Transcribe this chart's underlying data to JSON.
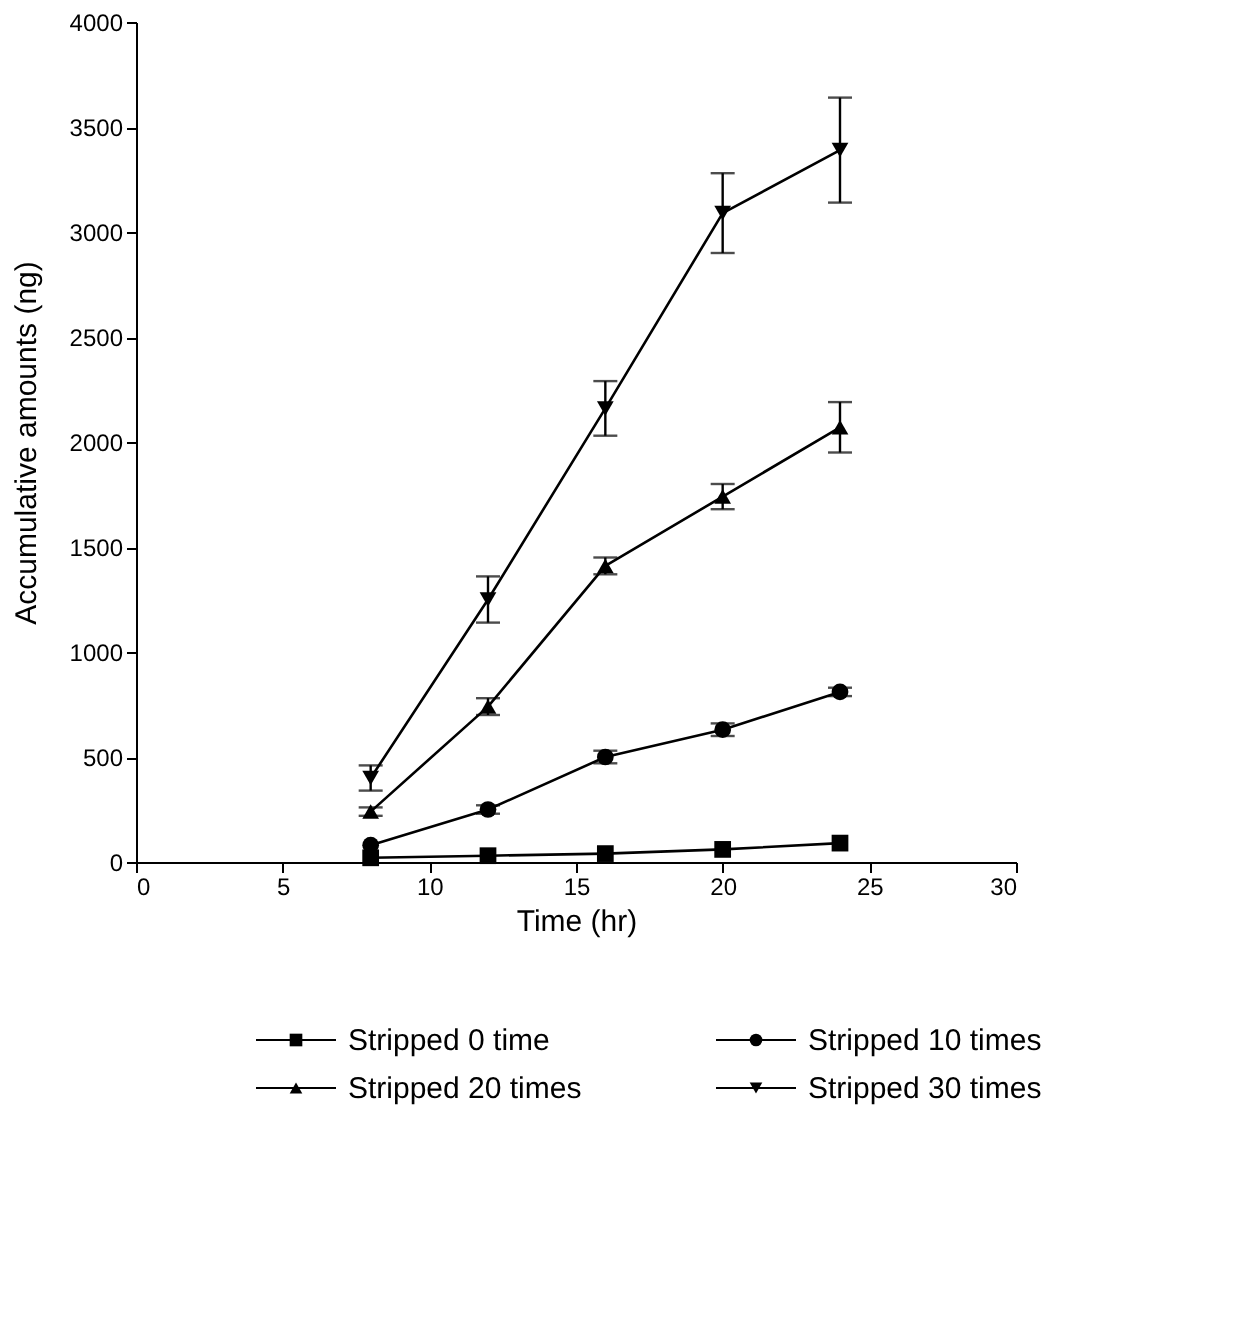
{
  "chart_data": {
    "type": "line",
    "xlabel": "Time (hr)",
    "ylabel": "Accumulative amounts (ng)",
    "x": [
      8,
      12,
      16,
      20,
      24
    ],
    "series": [
      {
        "name": "Stripped 0 time",
        "color": "#000000",
        "marker": "square",
        "values": [
          20,
          30,
          40,
          60,
          90
        ]
      },
      {
        "name": "Stripped 10 times",
        "color": "#000000",
        "marker": "circle",
        "values": [
          80,
          250,
          500,
          630,
          810
        ],
        "errors": [
          null,
          20,
          30,
          30,
          20
        ]
      },
      {
        "name": "Stripped 20 times",
        "color": "#000000",
        "marker": "triangle",
        "values": [
          240,
          740,
          1410,
          1740,
          2070
        ],
        "errors": [
          20,
          40,
          40,
          60,
          120
        ]
      },
      {
        "name": "Stripped 30 times",
        "color": "#000000",
        "marker": "triangle-down",
        "values": [
          400,
          1250,
          2160,
          3090,
          3390
        ],
        "errors": [
          60,
          110,
          130,
          190,
          250
        ]
      }
    ],
    "xlim": [
      0,
      30
    ],
    "xticks": [
      0,
      5,
      10,
      15,
      20,
      25,
      30
    ],
    "ylim": [
      0,
      4000
    ],
    "yticks": [
      0,
      500,
      1000,
      1500,
      2000,
      2500,
      3000,
      3500,
      4000
    ],
    "grid": false,
    "legend": "bottom",
    "line_style": "solid"
  }
}
